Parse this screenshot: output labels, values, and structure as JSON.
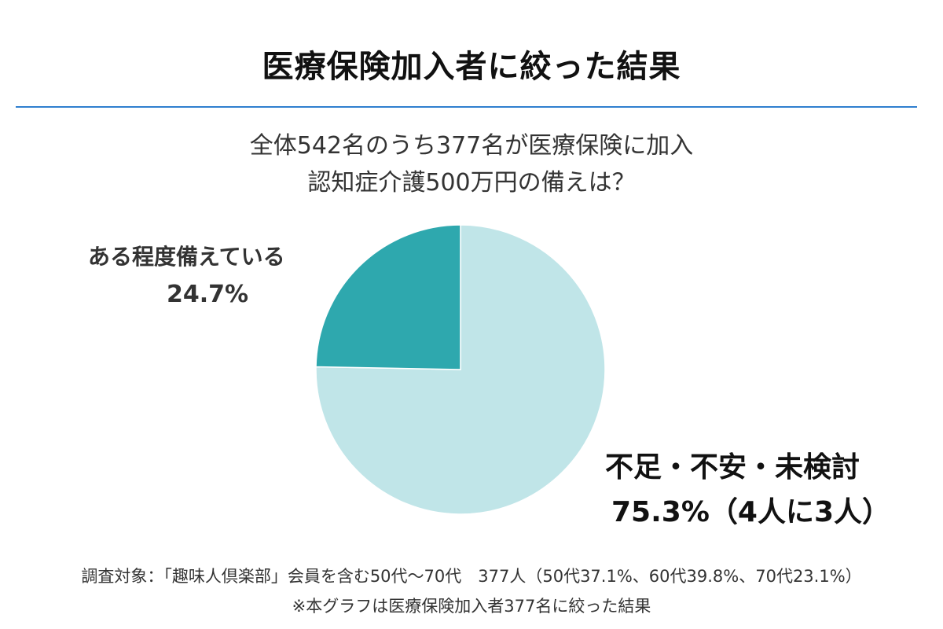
{
  "header": {
    "title": "医療保険加入者に絞った結果",
    "subtitle_line1": "全体542名のうち377名が医療保険に加入",
    "subtitle_line2": "認知症介護500万円の備えは？"
  },
  "chart_data": {
    "type": "pie",
    "slices": [
      {
        "label": "ある程度備えている",
        "value_text": "24.7%",
        "value": 24.7,
        "color": "#2ea8ae"
      },
      {
        "label": "不足・不安・未検討",
        "value_text": "75.3%（4人に3人）",
        "value": 75.3,
        "color": "#c0e5e8"
      }
    ]
  },
  "footer": {
    "note_line1": "調査対象：「趣味人倶楽部」会員を含む50代〜70代　377人（50代37.1%、60代39.8%、70代23.1%）",
    "note_line2": "※本グラフは医療保険加入者377名に絞った結果"
  }
}
